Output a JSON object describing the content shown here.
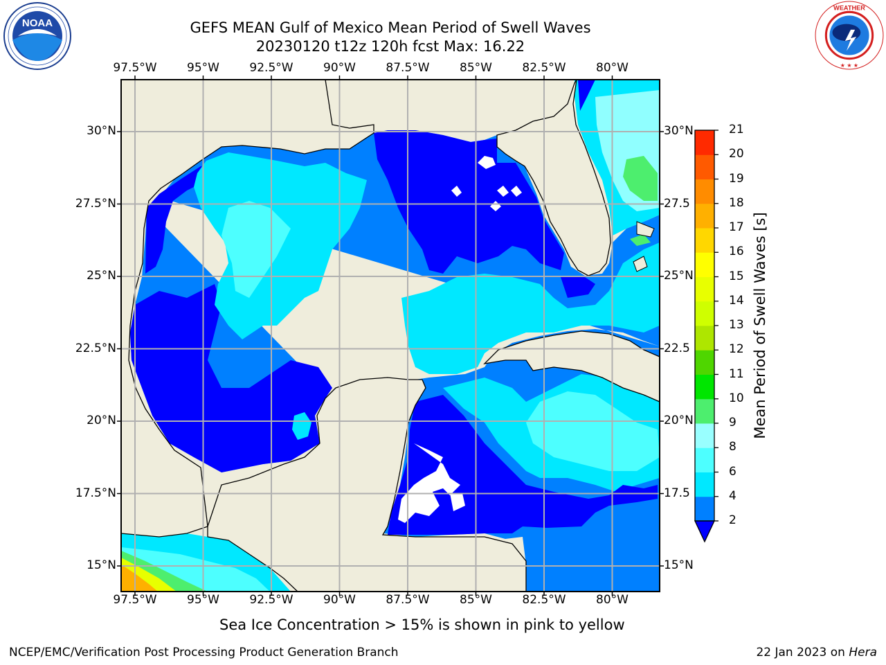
{
  "header": {
    "title_line1": "GEFS MEAN Gulf of Mexico Mean Period of Swell Waves",
    "title_line2": "20230120 t12z 120h fcst   Max: 16.22"
  },
  "logos": {
    "noaa_text": "NOAA",
    "noaa_ring": "NATIONAL OCEANIC AND ATMOSPHERIC ADMINISTRATION · U.S. DEPARTMENT OF COMMERCE",
    "nws_ring": "NATIONAL WEATHER SERVICE"
  },
  "map": {
    "lon_labels": [
      "97.5°W",
      "95°W",
      "92.5°W",
      "90°W",
      "87.5°W",
      "85°W",
      "82.5°W",
      "80°W"
    ],
    "lat_labels_left": [
      "30°N",
      "27.5°N",
      "25°N",
      "22.5°N",
      "20°N",
      "17.5°N",
      "15°N"
    ],
    "lat_labels_right": [
      "30°N",
      "27.5",
      "25°N",
      "22.5",
      "20°N",
      "17.5",
      "15°N"
    ],
    "land_color": "#efeddc",
    "ocean_fill_order": [
      "#0033ff",
      "#0080ff",
      "#00e8ff",
      "#4dffff",
      "#90ffff"
    ]
  },
  "colorbar": {
    "title": "Mean Period of Swell Waves [s]",
    "ticks": [
      "2",
      "4",
      "6",
      "8",
      "9",
      "10",
      "11",
      "12",
      "13",
      "14",
      "15",
      "16",
      "17",
      "18",
      "19",
      "20",
      "21"
    ],
    "colors": [
      "#0000ff",
      "#0080ff",
      "#00e8ff",
      "#4dffff",
      "#99ffff",
      "#4dee6e",
      "#00e600",
      "#4fd600",
      "#aee600",
      "#cfff00",
      "#e8ff00",
      "#ffff00",
      "#ffd700",
      "#ffb000",
      "#ff8c00",
      "#ff5a00",
      "#ff2a00",
      "#ff0000"
    ],
    "under_color": "#0000ff"
  },
  "chart_data": {
    "type": "heatmap",
    "title": "GEFS MEAN Gulf of Mexico Mean Period of Swell Waves",
    "subtitle": "20230120 t12z 120h fcst   Max: 16.22",
    "variable": "Mean Period of Swell Waves [s]",
    "max_value": 16.22,
    "color_levels": [
      2,
      4,
      6,
      8,
      9,
      10,
      11,
      12,
      13,
      14,
      15,
      16,
      17,
      18,
      19,
      20,
      21
    ],
    "lon_range": [
      -98.5,
      -78.5
    ],
    "lat_range": [
      14,
      32
    ]
  },
  "footer": {
    "sea_ice_note": "Sea Ice Concentration > 15% is shown in pink to yellow",
    "credit": "NCEP/EMC/Verification Post Processing Product Generation Branch",
    "date": "22 Jan 2023 on ",
    "machine": "Hera"
  }
}
